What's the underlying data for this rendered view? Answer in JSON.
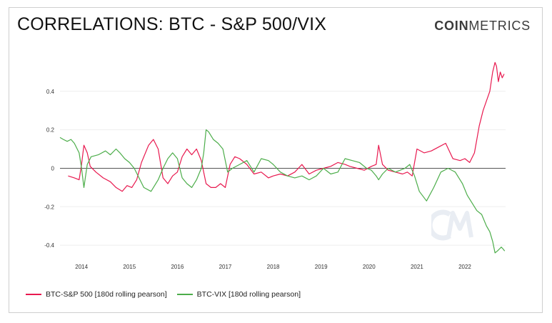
{
  "header": {
    "title": "CORRELATIONS: BTC - S&P 500/VIX",
    "brand_bold": "COIN",
    "brand_light": "METRICS"
  },
  "colors": {
    "spx": "#e8194f",
    "vix": "#4cad4a",
    "zero_line": "#555555",
    "grid": "#eeeeee"
  },
  "chart_data": {
    "type": "line",
    "title": "CORRELATIONS: BTC - S&P 500/VIX",
    "xlabel": "",
    "ylabel": "",
    "xlim": [
      2013.55,
      2022.85
    ],
    "ylim": [
      -0.47,
      0.57
    ],
    "x_ticks": [
      2014,
      2015,
      2016,
      2017,
      2018,
      2019,
      2020,
      2021,
      2022
    ],
    "y_ticks": [
      0.4,
      0.2,
      0,
      -0.2,
      -0.4
    ],
    "grid": true,
    "legend_position": "bottom-left",
    "series": [
      {
        "name": "BTC-S&P 500 [180d rolling pearson]",
        "color": "#e8194f",
        "x": [
          2013.72,
          2013.85,
          2013.95,
          2014.0,
          2014.05,
          2014.12,
          2014.18,
          2014.3,
          2014.45,
          2014.6,
          2014.72,
          2014.85,
          2014.95,
          2015.05,
          2015.15,
          2015.25,
          2015.4,
          2015.5,
          2015.6,
          2015.7,
          2015.8,
          2015.9,
          2016.0,
          2016.1,
          2016.2,
          2016.3,
          2016.4,
          2016.5,
          2016.6,
          2016.7,
          2016.8,
          2016.9,
          2017.0,
          2017.1,
          2017.2,
          2017.3,
          2017.45,
          2017.6,
          2017.75,
          2017.9,
          2018.0,
          2018.15,
          2018.3,
          2018.45,
          2018.6,
          2018.75,
          2018.9,
          2019.05,
          2019.2,
          2019.35,
          2019.5,
          2019.6,
          2019.75,
          2019.9,
          2020.05,
          2020.15,
          2020.2,
          2020.28,
          2020.4,
          2020.55,
          2020.7,
          2020.8,
          2020.9,
          2021.0,
          2021.15,
          2021.3,
          2021.45,
          2021.6,
          2021.75,
          2021.9,
          2022.0,
          2022.1,
          2022.2,
          2022.3,
          2022.38,
          2022.45,
          2022.52,
          2022.58,
          2022.63,
          2022.66,
          2022.7,
          2022.74,
          2022.78,
          2022.82
        ],
        "y": [
          -0.04,
          -0.05,
          -0.06,
          0.02,
          0.12,
          0.08,
          0.01,
          -0.02,
          -0.05,
          -0.07,
          -0.1,
          -0.12,
          -0.09,
          -0.1,
          -0.06,
          0.03,
          0.12,
          0.15,
          0.1,
          -0.05,
          -0.08,
          -0.04,
          -0.02,
          0.06,
          0.1,
          0.07,
          0.1,
          0.04,
          -0.08,
          -0.1,
          -0.1,
          -0.08,
          -0.1,
          0.02,
          0.06,
          0.05,
          0.02,
          -0.03,
          -0.02,
          -0.05,
          -0.04,
          -0.03,
          -0.04,
          -0.02,
          0.02,
          -0.03,
          -0.01,
          0.0,
          0.01,
          0.03,
          0.02,
          0.01,
          0.0,
          -0.01,
          0.01,
          0.02,
          0.12,
          0.02,
          -0.01,
          -0.02,
          -0.03,
          -0.02,
          -0.04,
          0.1,
          0.08,
          0.09,
          0.11,
          0.13,
          0.05,
          0.04,
          0.05,
          0.03,
          0.08,
          0.22,
          0.3,
          0.35,
          0.4,
          0.5,
          0.55,
          0.53,
          0.45,
          0.5,
          0.47,
          0.49
        ]
      },
      {
        "name": "BTC-VIX [180d rolling pearson]",
        "color": "#4cad4a",
        "x": [
          2013.55,
          2013.62,
          2013.7,
          2013.78,
          2013.85,
          2013.95,
          2014.0,
          2014.05,
          2014.12,
          2014.2,
          2014.35,
          2014.5,
          2014.6,
          2014.72,
          2014.8,
          2014.9,
          2015.0,
          2015.1,
          2015.2,
          2015.3,
          2015.45,
          2015.6,
          2015.7,
          2015.8,
          2015.9,
          2016.0,
          2016.1,
          2016.2,
          2016.3,
          2016.4,
          2016.5,
          2016.55,
          2016.6,
          2016.65,
          2016.75,
          2016.85,
          2016.95,
          2017.05,
          2017.15,
          2017.3,
          2017.45,
          2017.6,
          2017.75,
          2017.9,
          2018.0,
          2018.15,
          2018.3,
          2018.45,
          2018.6,
          2018.75,
          2018.9,
          2019.05,
          2019.2,
          2019.35,
          2019.5,
          2019.65,
          2019.8,
          2019.95,
          2020.05,
          2020.15,
          2020.2,
          2020.28,
          2020.4,
          2020.55,
          2020.65,
          2020.75,
          2020.85,
          2020.95,
          2021.05,
          2021.2,
          2021.35,
          2021.5,
          2021.65,
          2021.8,
          2021.95,
          2022.05,
          2022.15,
          2022.25,
          2022.35,
          2022.45,
          2022.52,
          2022.58,
          2022.63,
          2022.68,
          2022.72,
          2022.76,
          2022.8,
          2022.83
        ],
        "y": [
          0.16,
          0.15,
          0.14,
          0.15,
          0.13,
          0.08,
          0.0,
          -0.1,
          0.02,
          0.06,
          0.07,
          0.09,
          0.07,
          0.1,
          0.08,
          0.05,
          0.03,
          0.0,
          -0.05,
          -0.1,
          -0.12,
          -0.06,
          0.0,
          0.05,
          0.08,
          0.05,
          -0.05,
          -0.08,
          -0.1,
          -0.06,
          0.0,
          0.08,
          0.2,
          0.19,
          0.15,
          0.13,
          0.1,
          -0.02,
          0.0,
          0.02,
          0.04,
          -0.02,
          0.05,
          0.04,
          0.02,
          -0.02,
          -0.04,
          -0.05,
          -0.04,
          -0.06,
          -0.04,
          0.0,
          -0.03,
          -0.02,
          0.05,
          0.04,
          0.03,
          0.0,
          -0.01,
          -0.04,
          -0.06,
          -0.03,
          0.0,
          -0.02,
          -0.01,
          0.0,
          0.02,
          -0.04,
          -0.12,
          -0.17,
          -0.1,
          -0.02,
          0.0,
          -0.02,
          -0.08,
          -0.14,
          -0.18,
          -0.22,
          -0.24,
          -0.3,
          -0.33,
          -0.38,
          -0.44,
          -0.43,
          -0.42,
          -0.41,
          -0.42,
          -0.43
        ]
      }
    ]
  }
}
